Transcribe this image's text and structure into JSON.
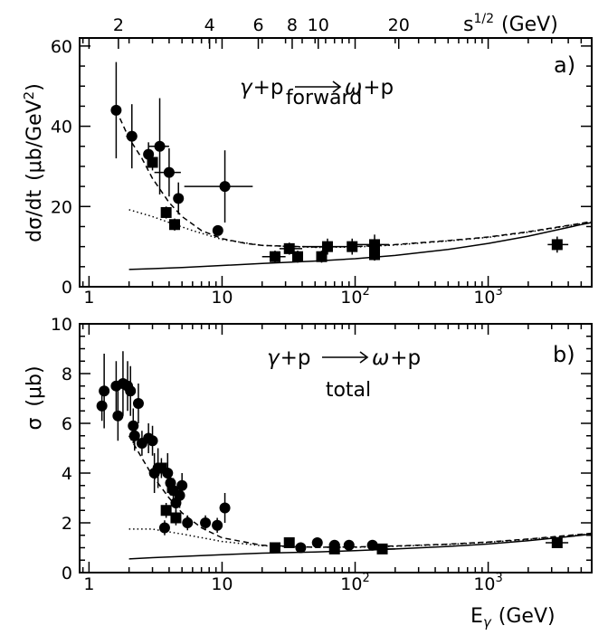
{
  "colors": {
    "foreground": "#000000",
    "background": "#ffffff"
  },
  "top_axis": {
    "label": "s^{1/2} (GeV)",
    "label_base": "s",
    "label_exponent": "1/2",
    "label_units": "(GeV)",
    "ticks": [
      {
        "value": 2,
        "label": "2"
      },
      {
        "value": 4,
        "label": "4"
      },
      {
        "value": 6,
        "label": "6"
      },
      {
        "value": 8,
        "label": "8"
      },
      {
        "value": 10,
        "label": "10"
      },
      {
        "value": 20,
        "label": "20"
      }
    ]
  },
  "chart_data": [
    {
      "type": "scatter",
      "panel_tag": "a)",
      "title": "γ+p → ω+p",
      "title_parts": {
        "gamma": "γ",
        "plus1": "+",
        "p1": "p",
        "omega": "ω",
        "plus2": "+",
        "p2": "p"
      },
      "subtitle": "forward",
      "xlabel": "",
      "ylabel": "dσ/dt (μb/GeV²)",
      "ylabel_main": "dσ/dt",
      "ylabel_units": "(μb/GeV",
      "ylabel_sup": "2",
      "ylabel_close": ")",
      "x_scale": "log",
      "xlim": [
        0.85,
        6000
      ],
      "ylim": [
        0,
        62
      ],
      "x_ticks": [
        {
          "value": 1,
          "label": "1"
        },
        {
          "value": 10,
          "label": "10"
        },
        {
          "value": 100,
          "label": "10",
          "sup": "2"
        },
        {
          "value": 1000,
          "label": "10",
          "sup": "3"
        }
      ],
      "y_ticks": [
        0,
        20,
        40,
        60
      ],
      "grid": false,
      "series": [
        {
          "marker": "circle",
          "points": [
            {
              "x": 1.6,
              "y": 44,
              "yerr": 12
            },
            {
              "x": 2.1,
              "y": 37.5,
              "yerr": 8,
              "xerr": [
                1.9,
                2.3
              ]
            },
            {
              "x": 2.8,
              "y": 33,
              "yerr": 3
            },
            {
              "x": 3.4,
              "y": 35,
              "yerr": 12,
              "xerr": [
                2.8,
                4.0
              ]
            },
            {
              "x": 4.0,
              "y": 28.5,
              "yerr": 6,
              "xerr": [
                3.1,
                4.9
              ]
            },
            {
              "x": 4.7,
              "y": 22,
              "yerr": 4
            },
            {
              "x": 9.3,
              "y": 14,
              "yerr": 1
            },
            {
              "x": 10.5,
              "y": 25,
              "yerr": 9,
              "xerr": [
                5.2,
                17
              ]
            }
          ]
        },
        {
          "marker": "square",
          "points": [
            {
              "x": 3.0,
              "y": 31,
              "yerr": 2
            },
            {
              "x": 3.8,
              "y": 18.5,
              "yerr": 1.5
            },
            {
              "x": 4.4,
              "y": 15.5,
              "yerr": 1.5
            },
            {
              "x": 25,
              "y": 7.5,
              "yerr": 1.5,
              "xerr": [
                20,
                30
              ]
            },
            {
              "x": 32,
              "y": 9.5,
              "yerr": 1.5,
              "xerr": [
                27,
                40
              ]
            },
            {
              "x": 37,
              "y": 7.5,
              "yerr": 1.5
            },
            {
              "x": 56,
              "y": 7.5,
              "yerr": 1.5
            },
            {
              "x": 62,
              "y": 10,
              "yerr": 2,
              "xerr": [
                40,
                100
              ]
            },
            {
              "x": 95,
              "y": 10,
              "yerr": 2
            },
            {
              "x": 140,
              "y": 10.5,
              "yerr": 2.5,
              "xerr": [
                100,
                180
              ]
            },
            {
              "x": 140,
              "y": 8,
              "yerr": 1.5
            },
            {
              "x": 3300,
              "y": 10.5,
              "yerr": 2,
              "xerr": [
                2800,
                4000
              ]
            }
          ]
        }
      ],
      "curves": [
        {
          "style": "solid",
          "points": [
            [
              2,
              4.3
            ],
            [
              3,
              4.5
            ],
            [
              5,
              4.8
            ],
            [
              10,
              5.3
            ],
            [
              20,
              5.8
            ],
            [
              50,
              6.4
            ],
            [
              100,
              7.0
            ],
            [
              200,
              7.8
            ],
            [
              500,
              9.3
            ],
            [
              1000,
              10.8
            ],
            [
              2000,
              12.6
            ],
            [
              5000,
              15.5
            ],
            [
              6000,
              16.0
            ]
          ]
        },
        {
          "style": "dotted",
          "points": [
            [
              2,
              19.2
            ],
            [
              3,
              17.5
            ],
            [
              4,
              16
            ],
            [
              6,
              14
            ],
            [
              10,
              11.8
            ],
            [
              20,
              10.3
            ],
            [
              50,
              9.8
            ],
            [
              100,
              9.9
            ],
            [
              200,
              10.4
            ],
            [
              500,
              11.4
            ],
            [
              1000,
              12.3
            ],
            [
              2000,
              13.6
            ],
            [
              5000,
              15.7
            ],
            [
              6000,
              16.2
            ]
          ]
        },
        {
          "style": "dashed",
          "points": [
            [
              1.6,
              44
            ],
            [
              2,
              37
            ],
            [
              2.5,
              32
            ],
            [
              3,
              27
            ],
            [
              4,
              21
            ],
            [
              5,
              17.5
            ],
            [
              7,
              14
            ],
            [
              10,
              12
            ],
            [
              15,
              10.8
            ],
            [
              20,
              10.3
            ],
            [
              50,
              9.9
            ],
            [
              100,
              10.0
            ],
            [
              200,
              10.5
            ],
            [
              500,
              11.5
            ],
            [
              1000,
              12.4
            ],
            [
              2000,
              13.7
            ],
            [
              5000,
              15.8
            ],
            [
              6000,
              16.3
            ]
          ]
        }
      ]
    },
    {
      "type": "scatter",
      "panel_tag": "b)",
      "title": "γ+p → ω+p",
      "title_parts": {
        "gamma": "γ",
        "plus1": "+",
        "p1": "p",
        "omega": "ω",
        "plus2": "+",
        "p2": "p"
      },
      "subtitle": "total",
      "xlabel": "E_γ (GeV)",
      "xlabel_base": "E",
      "xlabel_sub": "γ",
      "xlabel_units": "(GeV)",
      "ylabel": "σ (μb)",
      "ylabel_main": "σ",
      "ylabel_units": "(μb)",
      "x_scale": "log",
      "xlim": [
        0.85,
        6000
      ],
      "ylim": [
        0,
        10
      ],
      "x_ticks": [
        {
          "value": 1,
          "label": "1"
        },
        {
          "value": 10,
          "label": "10"
        },
        {
          "value": 100,
          "label": "10",
          "sup": "2"
        },
        {
          "value": 1000,
          "label": "10",
          "sup": "3"
        }
      ],
      "y_ticks": [
        0,
        2,
        4,
        6,
        8,
        10
      ],
      "grid": false,
      "series": [
        {
          "marker": "circle",
          "points": [
            {
              "x": 1.25,
              "y": 6.7,
              "yerr": 0.6
            },
            {
              "x": 1.3,
              "y": 7.3,
              "yerr": 1.5
            },
            {
              "x": 1.6,
              "y": 7.5,
              "yerr": 1.0
            },
            {
              "x": 1.65,
              "y": 6.3,
              "yerr": 1.0
            },
            {
              "x": 1.8,
              "y": 7.6,
              "yerr": 1.3
            },
            {
              "x": 1.95,
              "y": 7.5,
              "yerr": 1.0
            },
            {
              "x": 2.05,
              "y": 7.3,
              "yerr": 1.0
            },
            {
              "x": 2.15,
              "y": 5.9,
              "yerr": 0.7
            },
            {
              "x": 2.2,
              "y": 5.5,
              "yerr": 0.6
            },
            {
              "x": 2.35,
              "y": 6.8,
              "yerr": 0.8
            },
            {
              "x": 2.5,
              "y": 5.2,
              "yerr": 0.5
            },
            {
              "x": 2.8,
              "y": 5.4,
              "yerr": 0.6
            },
            {
              "x": 3.0,
              "y": 5.3,
              "yerr": 0.6
            },
            {
              "x": 3.1,
              "y": 4.0,
              "yerr": 0.8
            },
            {
              "x": 3.3,
              "y": 4.2,
              "yerr": 0.8
            },
            {
              "x": 3.7,
              "y": 1.8,
              "yerr": 0.3
            },
            {
              "x": 3.9,
              "y": 4.0,
              "yerr": 0.8
            },
            {
              "x": 4.1,
              "y": 3.6,
              "yerr": 0.5
            },
            {
              "x": 4.3,
              "y": 3.3,
              "yerr": 0.5
            },
            {
              "x": 4.5,
              "y": 2.8,
              "yerr": 0.4
            },
            {
              "x": 4.8,
              "y": 3.1,
              "yerr": 0.5
            },
            {
              "x": 5.0,
              "y": 3.5,
              "yerr": 0.5
            },
            {
              "x": 5.5,
              "y": 2.0,
              "yerr": 0.3
            },
            {
              "x": 7.5,
              "y": 2.0,
              "yerr": 0.3
            },
            {
              "x": 9.2,
              "y": 1.9,
              "yerr": 0.3
            },
            {
              "x": 10.5,
              "y": 2.6,
              "yerr": 0.6
            },
            {
              "x": 39,
              "y": 1.0,
              "yerr": 0.1
            },
            {
              "x": 52,
              "y": 1.2,
              "yerr": 0.1
            },
            {
              "x": 70,
              "y": 1.1,
              "yerr": 0.1
            },
            {
              "x": 90,
              "y": 1.1,
              "yerr": 0.1
            },
            {
              "x": 135,
              "y": 1.1,
              "yerr": 0.1
            }
          ]
        },
        {
          "marker": "square",
          "points": [
            {
              "x": 3.5,
              "y": 4.2,
              "yerr": 0.4
            },
            {
              "x": 3.8,
              "y": 2.5,
              "yerr": 0.3
            },
            {
              "x": 4.5,
              "y": 2.2,
              "yerr": 0.3
            },
            {
              "x": 25,
              "y": 1.0,
              "yerr": 0.1
            },
            {
              "x": 32,
              "y": 1.2,
              "yerr": 0.15
            },
            {
              "x": 70,
              "y": 0.95,
              "yerr": 0.1
            },
            {
              "x": 160,
              "y": 0.95,
              "yerr": 0.1,
              "xerr": [
                130,
                200
              ]
            },
            {
              "x": 3300,
              "y": 1.2,
              "yerr": 0.1,
              "xerr": [
                2700,
                4000
              ]
            }
          ]
        }
      ],
      "curves": [
        {
          "style": "solid",
          "points": [
            [
              2,
              0.55
            ],
            [
              3,
              0.6
            ],
            [
              5,
              0.65
            ],
            [
              10,
              0.72
            ],
            [
              20,
              0.78
            ],
            [
              50,
              0.83
            ],
            [
              100,
              0.88
            ],
            [
              200,
              0.95
            ],
            [
              500,
              1.05
            ],
            [
              1000,
              1.15
            ],
            [
              2000,
              1.28
            ],
            [
              5000,
              1.5
            ],
            [
              6000,
              1.55
            ]
          ]
        },
        {
          "style": "dotted",
          "points": [
            [
              2,
              1.75
            ],
            [
              3,
              1.75
            ],
            [
              5,
              1.55
            ],
            [
              10,
              1.25
            ],
            [
              20,
              1.08
            ],
            [
              50,
              1.02
            ],
            [
              100,
              1.02
            ],
            [
              200,
              1.06
            ],
            [
              500,
              1.13
            ],
            [
              1000,
              1.22
            ],
            [
              2000,
              1.33
            ],
            [
              5000,
              1.52
            ],
            [
              6000,
              1.57
            ]
          ]
        },
        {
          "style": "dashed",
          "points": [
            [
              2,
              5.5
            ],
            [
              2.5,
              4.6
            ],
            [
              3,
              3.9
            ],
            [
              4,
              3.0
            ],
            [
              5,
              2.4
            ],
            [
              7,
              1.8
            ],
            [
              10,
              1.4
            ],
            [
              20,
              1.1
            ],
            [
              50,
              1.02
            ],
            [
              100,
              1.03
            ],
            [
              200,
              1.07
            ],
            [
              500,
              1.14
            ],
            [
              1000,
              1.23
            ],
            [
              2000,
              1.35
            ],
            [
              5000,
              1.54
            ],
            [
              6000,
              1.58
            ]
          ]
        }
      ]
    }
  ]
}
